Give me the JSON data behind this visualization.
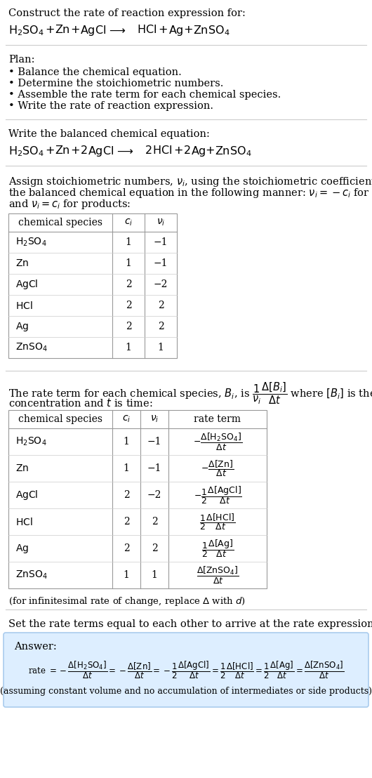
{
  "title_line1": "Construct the rate of reaction expression for:",
  "plan_header": "Plan:",
  "plan_items": [
    "• Balance the chemical equation.",
    "• Determine the stoichiometric numbers.",
    "• Assemble the rate term for each chemical species.",
    "• Write the rate of reaction expression."
  ],
  "balanced_header": "Write the balanced chemical equation:",
  "stoich_intro_lines": [
    "Assign stoichiometric numbers, $\\nu_i$, using the stoichiometric coefficients, $c_i$, from",
    "the balanced chemical equation in the following manner: $\\nu_i = -c_i$ for reactants",
    "and $\\nu_i = c_i$ for products:"
  ],
  "table1_headers": [
    "chemical species",
    "$c_i$",
    "$\\nu_i$"
  ],
  "table1_rows": [
    [
      "$\\mathrm{H_2SO_4}$",
      "1",
      "−1"
    ],
    [
      "$\\mathrm{Zn}$",
      "1",
      "−1"
    ],
    [
      "$\\mathrm{AgCl}$",
      "2",
      "−2"
    ],
    [
      "$\\mathrm{HCl}$",
      "2",
      "2"
    ],
    [
      "$\\mathrm{Ag}$",
      "2",
      "2"
    ],
    [
      "$\\mathrm{ZnSO_4}$",
      "1",
      "1"
    ]
  ],
  "table2_headers": [
    "chemical species",
    "$c_i$",
    "$\\nu_i$",
    "rate term"
  ],
  "table2_rows": [
    [
      "$\\mathrm{H_2SO_4}$",
      "1",
      "−1"
    ],
    [
      "$\\mathrm{Zn}$",
      "1",
      "−1"
    ],
    [
      "$\\mathrm{AgCl}$",
      "2",
      "−2"
    ],
    [
      "$\\mathrm{HCl}$",
      "2",
      "2"
    ],
    [
      "$\\mathrm{Ag}$",
      "2",
      "2"
    ],
    [
      "$\\mathrm{ZnSO_4}$",
      "1",
      "1"
    ]
  ],
  "rate_terms": [
    "$-\\dfrac{\\Delta[\\mathrm{H_2SO_4}]}{\\Delta t}$",
    "$-\\dfrac{\\Delta[\\mathrm{Zn}]}{\\Delta t}$",
    "$-\\dfrac{1}{2}\\dfrac{\\Delta[\\mathrm{AgCl}]}{\\Delta t}$",
    "$\\dfrac{1}{2}\\dfrac{\\Delta[\\mathrm{HCl}]}{\\Delta t}$",
    "$\\dfrac{1}{2}\\dfrac{\\Delta[\\mathrm{Ag}]}{\\Delta t}$",
    "$\\dfrac{\\Delta[\\mathrm{ZnSO_4}]}{\\Delta t}$"
  ],
  "infinitesimal_note": "(for infinitesimal rate of change, replace $\\Delta$ with $d$)",
  "set_rate_text": "Set the rate terms equal to each other to arrive at the rate expression:",
  "answer_label": "Answer:",
  "assuming_note": "(assuming constant volume and no accumulation of intermediates or side products)",
  "answer_box_color": "#ddeeff",
  "answer_border_color": "#aaccee",
  "bg_color": "#ffffff",
  "text_color": "#000000",
  "hline_color": "#cccccc",
  "table_border_color": "#999999",
  "table_inner_color": "#cccccc"
}
